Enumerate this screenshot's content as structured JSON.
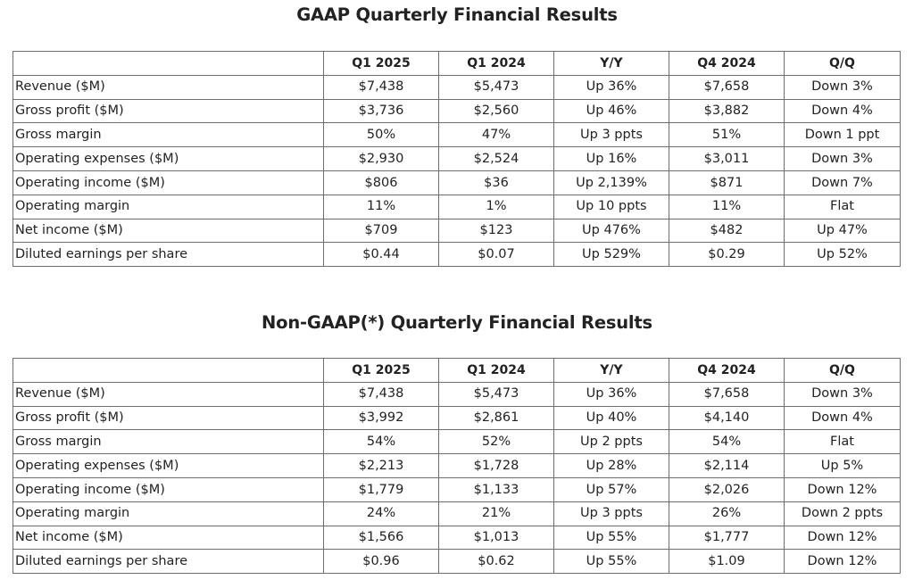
{
  "gaap": {
    "title": "GAAP Quarterly Financial Results",
    "headers": [
      "",
      "Q1 2025",
      "Q1 2024",
      "Y/Y",
      "Q4 2024",
      "Q/Q"
    ],
    "rows": [
      [
        "Revenue ($M)",
        "$7,438",
        "$5,473",
        "Up 36%",
        "$7,658",
        "Down 3%"
      ],
      [
        "Gross profit ($M)",
        "$3,736",
        "$2,560",
        "Up 46%",
        "$3,882",
        "Down 4%"
      ],
      [
        "Gross margin",
        "50%",
        "47%",
        "Up 3 ppts",
        "51%",
        "Down 1 ppt"
      ],
      [
        "Operating expenses ($M)",
        "$2,930",
        "$2,524",
        "Up 16%",
        "$3,011",
        "Down 3%"
      ],
      [
        "Operating income ($M)",
        "$806",
        "$36",
        "Up 2,139%",
        "$871",
        "Down 7%"
      ],
      [
        "Operating margin",
        "11%",
        "1%",
        "Up 10 ppts",
        "11%",
        "Flat"
      ],
      [
        "Net income ($M)",
        "$709",
        "$123",
        "Up 476%",
        "$482",
        "Up 47%"
      ],
      [
        "Diluted earnings per share",
        "$0.44",
        "$0.07",
        "Up 529%",
        "$0.29",
        "Up 52%"
      ]
    ]
  },
  "nongaap": {
    "title": "Non-GAAP(*) Quarterly Financial Results",
    "headers": [
      "",
      "Q1 2025",
      "Q1 2024",
      "Y/Y",
      "Q4 2024",
      "Q/Q"
    ],
    "rows": [
      [
        "Revenue ($M)",
        "$7,438",
        "$5,473",
        "Up 36%",
        "$7,658",
        "Down 3%"
      ],
      [
        "Gross profit ($M)",
        "$3,992",
        "$2,861",
        "Up 40%",
        "$4,140",
        "Down 4%"
      ],
      [
        "Gross margin",
        "54%",
        "52%",
        "Up 2 ppts",
        "54%",
        "Flat"
      ],
      [
        "Operating expenses ($M)",
        "$2,213",
        "$1,728",
        "Up 28%",
        "$2,114",
        "Up 5%"
      ],
      [
        "Operating income ($M)",
        "$1,779",
        "$1,133",
        "Up 57%",
        "$2,026",
        "Down 12%"
      ],
      [
        "Operating margin",
        "24%",
        "21%",
        "Up 3 ppts",
        "26%",
        "Down 2 ppts"
      ],
      [
        "Net income ($M)",
        "$1,566",
        "$1,013",
        "Up 55%",
        "$1,777",
        "Down 12%"
      ],
      [
        "Diluted earnings per share",
        "$0.96",
        "$0.62",
        "Up 55%",
        "$1.09",
        "Down 12%"
      ]
    ]
  }
}
